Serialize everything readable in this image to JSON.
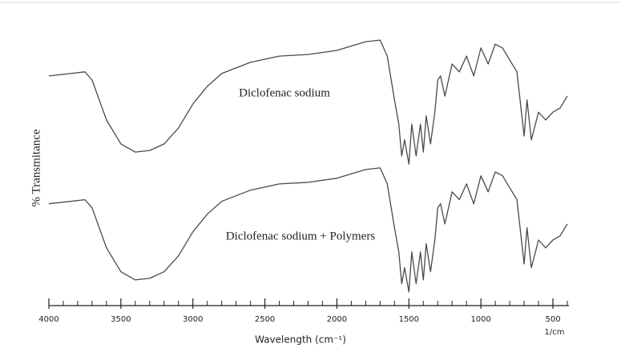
{
  "chart_data": {
    "type": "line",
    "x_label": "Wavelength (cm⁻¹)",
    "y_label": "% Transmitance",
    "x_unit_label": "1/cm",
    "annotations": [
      "Diclofenac sodium",
      "Diclofenac sodium + Polymers"
    ],
    "xlim": [
      4000,
      400
    ],
    "xticks": [
      4000,
      3500,
      3000,
      2500,
      2000,
      1500,
      1000,
      500
    ],
    "ylim": [
      0,
      100
    ],
    "x": [
      4000,
      3850,
      3750,
      3700,
      3600,
      3500,
      3400,
      3300,
      3200,
      3100,
      3000,
      2900,
      2800,
      2600,
      2400,
      2200,
      2000,
      1800,
      1700,
      1650,
      1600,
      1570,
      1550,
      1530,
      1500,
      1480,
      1450,
      1420,
      1400,
      1380,
      1350,
      1320,
      1300,
      1280,
      1250,
      1200,
      1150,
      1100,
      1050,
      1000,
      950,
      900,
      850,
      800,
      750,
      700,
      680,
      650,
      600,
      550,
      500,
      450,
      400
    ],
    "series": [
      {
        "name": "Diclofenac sodium",
        "color": "#4a4a4a",
        "values": [
          80.9,
          81.8,
          82.4,
          79.4,
          64.7,
          55.9,
          52.9,
          53.5,
          55.9,
          61.8,
          70.6,
          77.1,
          81.8,
          85.9,
          88.2,
          88.8,
          90.3,
          93.5,
          94.1,
          88.2,
          72.1,
          63.2,
          51.5,
          57.4,
          48.5,
          63.2,
          51.5,
          63.2,
          52.9,
          66.2,
          55.9,
          67.6,
          79.4,
          80.9,
          73.5,
          85.3,
          82.4,
          88.2,
          80.9,
          91.2,
          85.3,
          92.6,
          91.2,
          86.8,
          82.4,
          58.8,
          72.1,
          57.4,
          67.6,
          64.7,
          67.6,
          69.1,
          73.5
        ]
      },
      {
        "name": "Diclofenac sodium + Polymers",
        "color": "#4a4a4a",
        "values": [
          33.9,
          34.8,
          35.4,
          32.4,
          17.7,
          8.9,
          5.9,
          6.5,
          8.9,
          14.8,
          23.6,
          30.1,
          34.8,
          38.9,
          41.2,
          41.8,
          43.3,
          46.5,
          47.1,
          41.2,
          25.1,
          16.2,
          4.5,
          10.4,
          1.5,
          16.2,
          4.5,
          16.2,
          5.9,
          19.2,
          8.9,
          20.6,
          32.4,
          33.9,
          26.5,
          38.3,
          35.4,
          41.2,
          33.9,
          44.2,
          38.3,
          45.6,
          44.2,
          39.8,
          35.4,
          11.8,
          25.1,
          10.4,
          20.6,
          17.7,
          20.6,
          22.1,
          26.5
        ]
      }
    ]
  }
}
